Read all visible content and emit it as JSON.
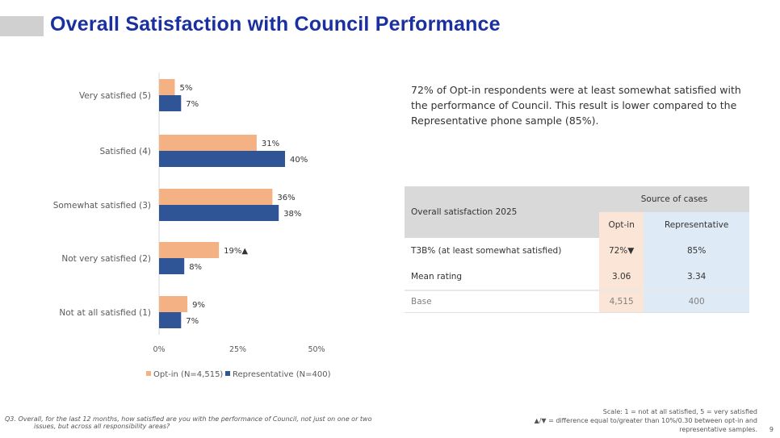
{
  "title": "Overall Satisfaction with Council Performance",
  "summary": "72% of Opt-in respondents were at least somewhat satisfied with the performance of Council. This result is lower compared to the Representative phone sample (85%).",
  "chart_data": {
    "type": "bar",
    "orientation": "horizontal",
    "categories": [
      "Very satisfied (5)",
      "Satisfied (4)",
      "Somewhat satisfied (3)",
      "Not very satisfied (2)",
      "Not at all satisfied (1)"
    ],
    "series": [
      {
        "name": "Opt-in (N=4,515)",
        "color": "#f4b183",
        "values": [
          5,
          31,
          36,
          19,
          9
        ],
        "labels": [
          "5%",
          "31%",
          "36%",
          "19%▲",
          "9%"
        ]
      },
      {
        "name": "Representative (N=400)",
        "color": "#2f5597",
        "values": [
          7,
          40,
          38,
          8,
          7
        ],
        "labels": [
          "7%",
          "40%",
          "38%",
          "8%",
          "7%"
        ]
      }
    ],
    "xlim": [
      0,
      50
    ],
    "xticks": [
      "0%",
      "25%",
      "50%"
    ],
    "legend": "bottom",
    "grid": false
  },
  "table": {
    "row_header": "Overall satisfaction 2025",
    "group_header": "Source of cases",
    "columns": [
      "Opt-in",
      "Representative"
    ],
    "rows": [
      {
        "label": "T3B% (at least somewhat satisfied)",
        "values": [
          "72%▼",
          "85%"
        ]
      },
      {
        "label": "Mean rating",
        "values": [
          "3.06",
          "3.34"
        ]
      },
      {
        "label": "Base",
        "values": [
          "4,515",
          "400"
        ]
      }
    ]
  },
  "footnote": {
    "question_l1": "Q3. Overall, for the last 12 months, how satisfied are you with the performance of Council, not just on one or two",
    "question_l2": "issues, but across all responsibility areas?",
    "scale": "Scale: 1 = not at all satisfied, 5 = very satisfied",
    "diff_l1": "▲/▼ = difference equal to/greater than 10%/0.30 between opt-in and",
    "diff_l2": "representative samples."
  },
  "page_number": "9"
}
